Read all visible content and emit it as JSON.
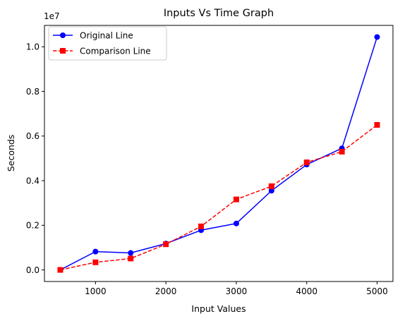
{
  "chart_data": {
    "type": "line",
    "title": "Inputs Vs Time Graph",
    "xlabel": "Input Values",
    "ylabel": "Seconds",
    "y_multiplier_label": "1e7",
    "x": [
      500,
      1000,
      1500,
      2000,
      2500,
      3000,
      3500,
      4000,
      4500,
      5000
    ],
    "xlim": [
      275,
      5225
    ],
    "ylim": [
      -520000,
      10960000
    ],
    "x_ticks": [
      1000,
      2000,
      3000,
      4000,
      5000
    ],
    "x_tick_labels": [
      "1000",
      "2000",
      "3000",
      "4000",
      "5000"
    ],
    "y_ticks": [
      0,
      2000000,
      4000000,
      6000000,
      8000000,
      10000000
    ],
    "y_tick_labels": [
      "0.0",
      "0.2",
      "0.4",
      "0.6",
      "0.8",
      "1.0"
    ],
    "grid": false,
    "legend_position": "top-left",
    "series": [
      {
        "name": "Original Line",
        "color": "#0000ff",
        "line_style": "solid",
        "marker": "circle",
        "values": [
          0,
          820000,
          760000,
          1180000,
          1780000,
          2080000,
          3550000,
          4720000,
          5450000,
          10440000
        ]
      },
      {
        "name": "Comparison Line",
        "color": "#ff0000",
        "line_style": "dashed",
        "marker": "square",
        "values": [
          0,
          340000,
          510000,
          1150000,
          1950000,
          3160000,
          3750000,
          4820000,
          5300000,
          6500000
        ]
      }
    ]
  }
}
